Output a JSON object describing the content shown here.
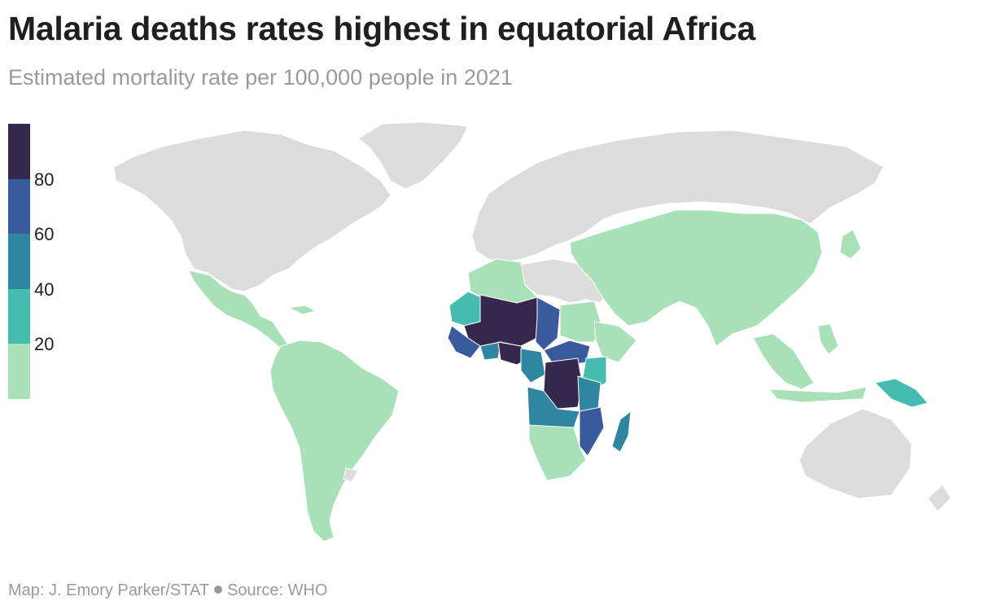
{
  "header": {
    "title": "Malaria deaths rates highest in equatorial Africa",
    "subtitle": "Estimated mortality rate per 100,000 people in 2021"
  },
  "legend": {
    "bins": [
      {
        "label": "",
        "color": "#a8e0b8",
        "min": 0,
        "max": 20
      },
      {
        "label": "20",
        "color": "#46bcb0",
        "min": 20,
        "max": 40
      },
      {
        "label": "40",
        "color": "#2e86a1",
        "min": 40,
        "max": 60
      },
      {
        "label": "60",
        "color": "#3a5a9e",
        "min": 60,
        "max": 80
      },
      {
        "label": "80",
        "color": "#35284d",
        "min": 80,
        "max": 100
      }
    ],
    "ticks": [
      "20",
      "40",
      "60",
      "80"
    ]
  },
  "colors": {
    "no_data": "#dcdcdc",
    "border": "#ffffff"
  },
  "footer": {
    "credit": "Map: J. Emory Parker/STAT",
    "source": "Source: WHO"
  }
}
